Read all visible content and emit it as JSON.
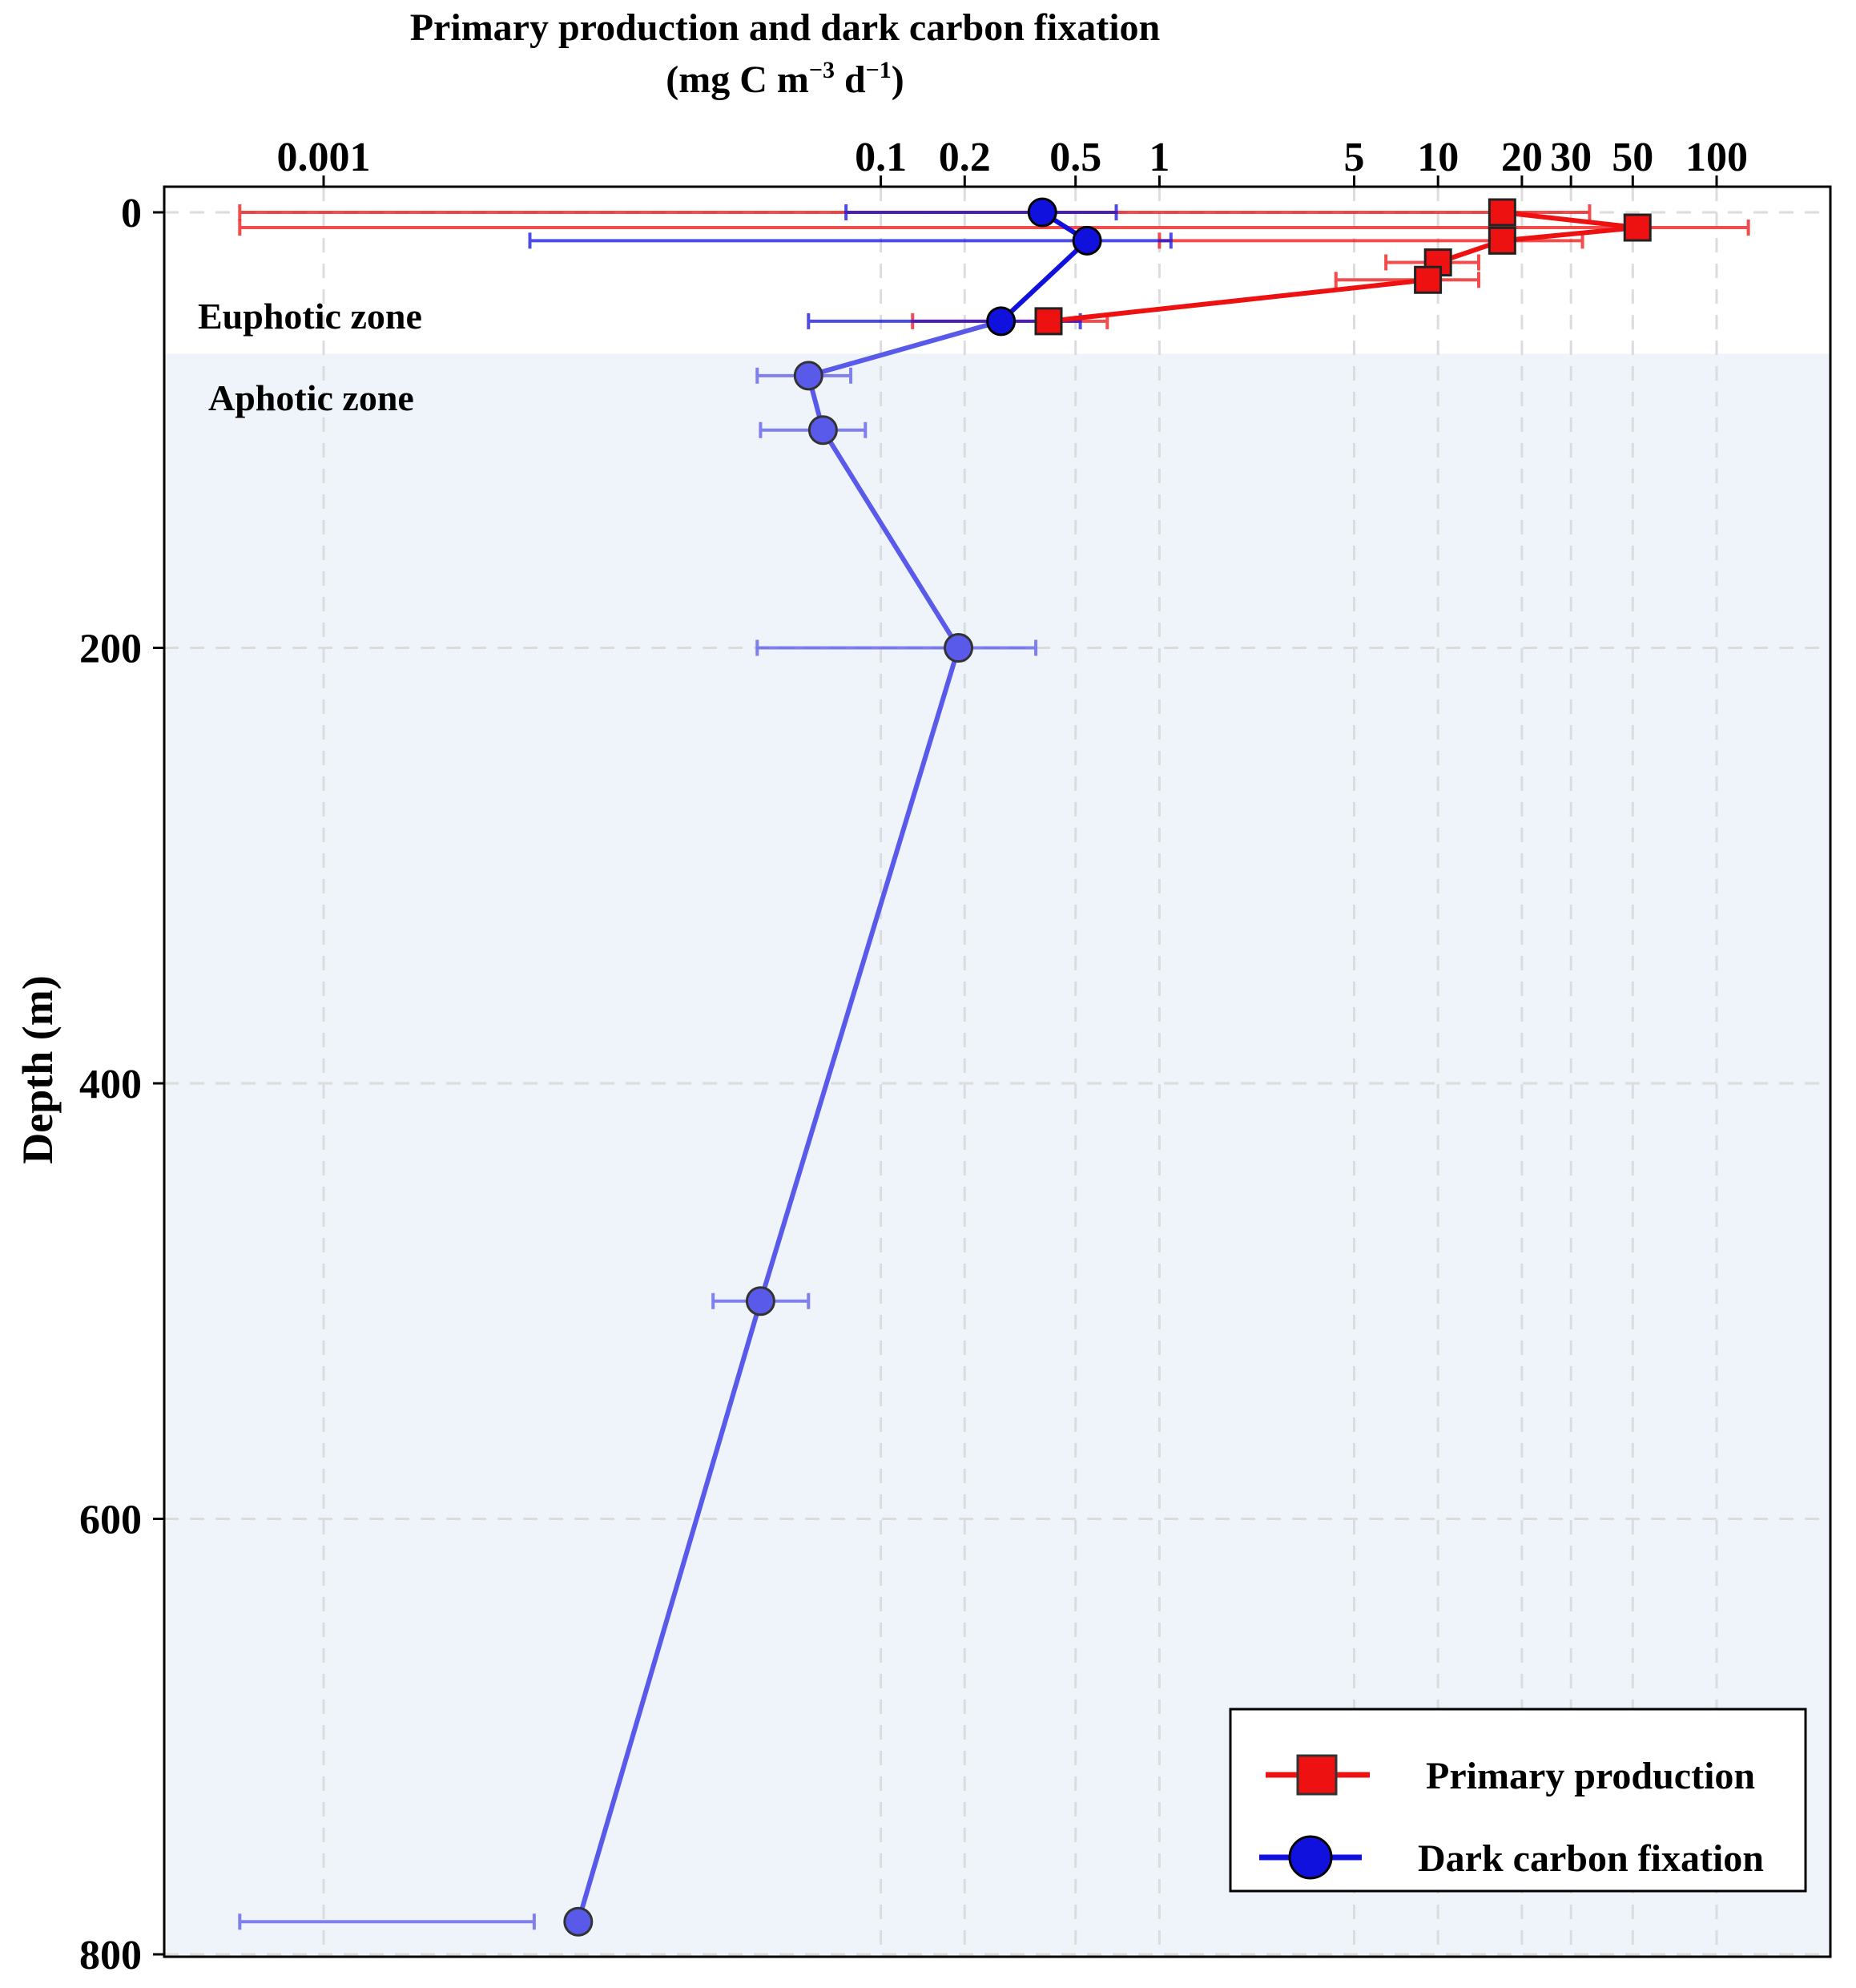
{
  "colors": {
    "primary_production": "#ee1111",
    "dark_carbon_fixation": "#1111dd",
    "dark_carbon_fixation_aphotic": "#5a5aea",
    "aphotic_background": "#eef4fa",
    "grid": "#dcdcdc"
  },
  "chart_data": {
    "type": "line",
    "title": "Primary production and dark carbon fixation",
    "subtitle_parts": {
      "prefix": "(mg C m",
      "exp1": "−3",
      "middle": " d",
      "exp2": "−1",
      "suffix": ")"
    },
    "xlabel": "",
    "ylabel": "Depth (m)",
    "x_axis": {
      "scale": "log",
      "position": "top",
      "xlim": [
        0.0001,
        400
      ],
      "ticks": [
        0.001,
        0.1,
        0.2,
        0.5,
        1,
        5,
        10,
        20,
        30,
        50,
        100
      ],
      "tick_labels": [
        "0.001",
        "0.1",
        "0.2",
        "0.5",
        "1",
        "5",
        "10",
        "20",
        "30",
        "50",
        "100"
      ]
    },
    "y_axis": {
      "reversed": true,
      "ylim": [
        0,
        800
      ],
      "ticks": [
        0,
        200,
        400,
        600,
        800
      ],
      "tick_labels": [
        "0",
        "200",
        "400",
        "600",
        "800"
      ]
    },
    "grid": true,
    "zones": [
      {
        "label": "Euphotic zone",
        "depth_range": [
          0,
          65
        ]
      },
      {
        "label": "Aphotic zone",
        "depth_range": [
          65,
          800
        ]
      }
    ],
    "legend": {
      "placement": "bottom-right"
    },
    "series": [
      {
        "name": "Primary production",
        "marker": "square",
        "points": [
          {
            "depth": 0,
            "value": 17,
            "err_low": 0.0005,
            "err_high": 35
          },
          {
            "depth": 7,
            "value": 52,
            "err_low": 0.0005,
            "err_high": 130
          },
          {
            "depth": 13,
            "value": 17,
            "err_low": 1.0,
            "err_high": 33
          },
          {
            "depth": 23,
            "value": 10,
            "err_low": 6.5,
            "err_high": 14
          },
          {
            "depth": 31,
            "value": 9.2,
            "err_low": 4.3,
            "err_high": 14
          },
          {
            "depth": 50,
            "value": 0.4,
            "err_low": 0.13,
            "err_high": 0.65
          }
        ]
      },
      {
        "name": "Dark carbon fixation",
        "marker": "circle",
        "points": [
          {
            "depth": 0,
            "value": 0.38,
            "err_low": 0.075,
            "err_high": 0.7
          },
          {
            "depth": 13,
            "value": 0.55,
            "err_low": 0.0055,
            "err_high": 1.1
          },
          {
            "depth": 50,
            "value": 0.27,
            "err_low": 0.055,
            "err_high": 0.52
          },
          {
            "depth": 75,
            "value": 0.055,
            "err_low": 0.036,
            "err_high": 0.078
          },
          {
            "depth": 100,
            "value": 0.062,
            "err_low": 0.037,
            "err_high": 0.088
          },
          {
            "depth": 200,
            "value": 0.19,
            "err_low": 0.036,
            "err_high": 0.36
          },
          {
            "depth": 500,
            "value": 0.037,
            "err_low": 0.025,
            "err_high": 0.055
          },
          {
            "depth": 785,
            "value": 0.0082,
            "err_low": 0.0005,
            "err_high": 0.0057
          }
        ]
      }
    ]
  }
}
